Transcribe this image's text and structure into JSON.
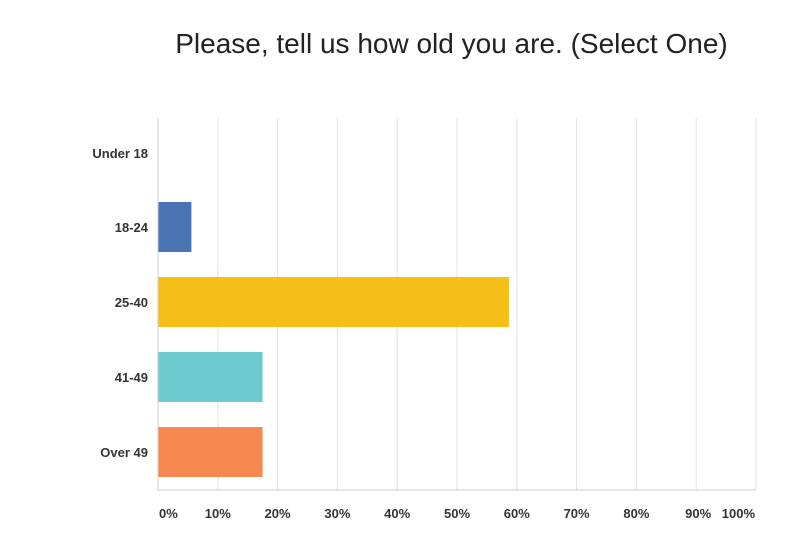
{
  "chart_data": {
    "type": "bar",
    "orientation": "horizontal",
    "title": "Please, tell us how old you are. (Select One)",
    "categories": [
      "Under 18",
      "18-24",
      "25-40",
      "41-49",
      "Over 49"
    ],
    "values": [
      0,
      5.5,
      58.6,
      17.4,
      17.4
    ],
    "colors": [
      "#5a82c4",
      "#4a73b4",
      "#f6bf17",
      "#6ccbcc",
      "#f7884f"
    ],
    "xlim": [
      0,
      100
    ],
    "xticks": [
      "0%",
      "10%",
      "20%",
      "30%",
      "40%",
      "50%",
      "60%",
      "70%",
      "80%",
      "90%",
      "100%"
    ],
    "xtick_values": [
      0,
      10,
      20,
      30,
      40,
      50,
      60,
      70,
      80,
      90,
      100
    ],
    "grid": true,
    "gridline_color": "#e3e3e3"
  }
}
